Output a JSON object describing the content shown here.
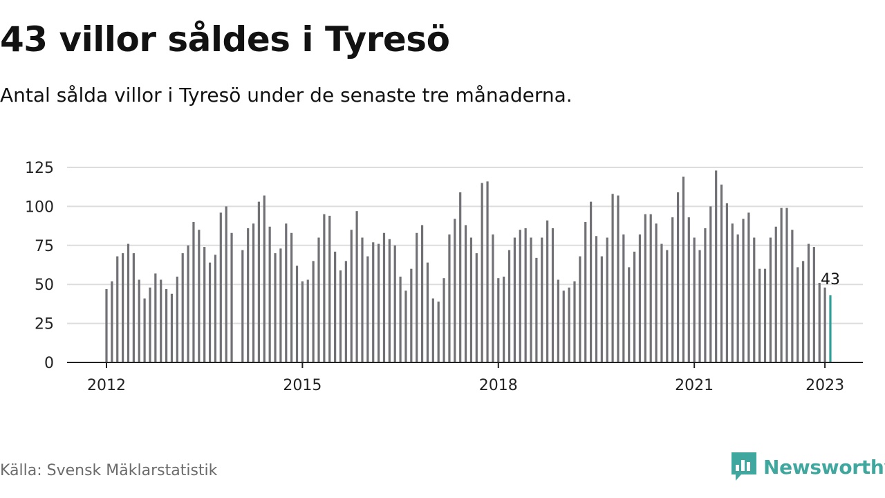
{
  "title": "43 villor såldes i Tyresö",
  "subtitle": "Antal sålda villor i Tyresö under de senaste tre månaderna.",
  "source": "Källa: Svensk Mäklarstatistik",
  "brand": "Newsworthy",
  "colors": {
    "bar": "#707075",
    "highlight": "#2aa198",
    "grid": "#dddddd",
    "axis": "#222222",
    "brand": "#3fa79e"
  },
  "chart_data": {
    "type": "bar",
    "x_ticks": [
      "2012",
      "2015",
      "2018",
      "2021",
      "2023"
    ],
    "y_ticks": [
      0,
      25,
      50,
      75,
      100,
      125
    ],
    "ylim": [
      0,
      125
    ],
    "grid": true,
    "start": "2012-01",
    "end": "2023-01",
    "values": [
      47,
      52,
      68,
      70,
      76,
      70,
      53,
      41,
      48,
      57,
      53,
      47,
      44,
      55,
      70,
      75,
      90,
      85,
      74,
      64,
      69,
      96,
      100,
      83,
      null,
      72,
      86,
      89,
      103,
      107,
      87,
      70,
      73,
      89,
      83,
      62,
      52,
      53,
      65,
      80,
      95,
      94,
      71,
      59,
      65,
      85,
      97,
      80,
      68,
      77,
      76,
      83,
      79,
      75,
      55,
      46,
      60,
      83,
      88,
      64,
      41,
      39,
      54,
      82,
      92,
      109,
      88,
      80,
      70,
      115,
      116,
      82,
      54,
      55,
      72,
      80,
      85,
      86,
      80,
      67,
      80,
      91,
      86,
      53,
      46,
      48,
      52,
      68,
      90,
      103,
      81,
      68,
      80,
      108,
      107,
      82,
      61,
      71,
      82,
      95,
      95,
      89,
      76,
      72,
      93,
      109,
      119,
      93,
      80,
      72,
      86,
      100,
      123,
      114,
      102,
      89,
      82,
      92,
      96,
      80,
      60,
      60,
      80,
      87,
      99,
      99,
      85,
      61,
      65,
      76,
      74,
      51,
      48,
      43
    ],
    "highlight_label": "43"
  }
}
